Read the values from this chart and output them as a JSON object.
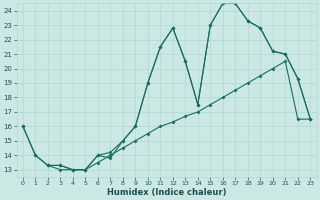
{
  "xlabel": "Humidex (Indice chaleur)",
  "bg_color": "#cce8e4",
  "grid_color": "#b0d8d0",
  "line_color": "#1a6e60",
  "xlim": [
    -0.5,
    23.5
  ],
  "ylim": [
    12.5,
    24.5
  ],
  "xticks": [
    0,
    1,
    2,
    3,
    4,
    5,
    6,
    7,
    8,
    9,
    10,
    11,
    12,
    13,
    14,
    15,
    16,
    17,
    18,
    19,
    20,
    21,
    22,
    23
  ],
  "yticks": [
    13,
    14,
    15,
    16,
    17,
    18,
    19,
    20,
    21,
    22,
    23,
    24
  ],
  "curve1_x": [
    0,
    1,
    2,
    3,
    4,
    5,
    6,
    7,
    8,
    9,
    10,
    11,
    12,
    13,
    14,
    15,
    16,
    17,
    18,
    19,
    20,
    21,
    22,
    23
  ],
  "curve1_y": [
    16,
    14,
    13.3,
    13.3,
    13,
    13,
    14,
    14.2,
    15,
    16,
    19,
    21.5,
    22.8,
    20.5,
    17.5,
    23,
    24.5,
    24.5,
    23.3,
    22.8,
    21.2,
    21,
    19.3,
    16.5
  ],
  "curve2_x": [
    0,
    1,
    2,
    3,
    4,
    5,
    6,
    7,
    8,
    9,
    10,
    11,
    12,
    13,
    14,
    15,
    16,
    17,
    18,
    19,
    20,
    21,
    22,
    23
  ],
  "curve2_y": [
    16,
    14,
    13.3,
    13,
    13,
    13,
    13.5,
    14,
    14.5,
    15,
    15.5,
    16,
    16.3,
    16.7,
    17,
    17.5,
    18,
    18.5,
    19,
    19.5,
    20,
    20.5,
    16.5,
    16.5
  ],
  "curve3_x": [
    2,
    3,
    4,
    5,
    6,
    7,
    8,
    9,
    10,
    11,
    12,
    13,
    14,
    15,
    16,
    17,
    18,
    19,
    20,
    21,
    22,
    23
  ],
  "curve3_y": [
    13.3,
    13.3,
    13,
    13,
    14,
    13.8,
    15,
    16,
    19,
    21.5,
    22.8,
    20.5,
    17.5,
    23,
    24.5,
    24.5,
    23.3,
    22.8,
    21.2,
    21,
    19.3,
    16.5
  ]
}
